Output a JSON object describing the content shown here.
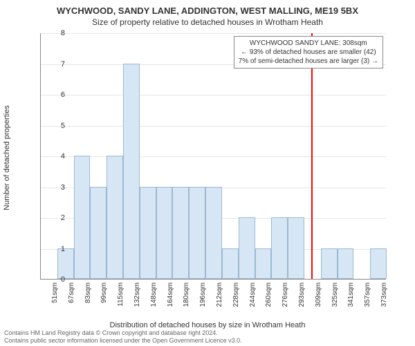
{
  "title_main": "WYCHWOOD, SANDY LANE, ADDINGTON, WEST MALLING, ME19 5BX",
  "title_sub": "Size of property relative to detached houses in Wrotham Heath",
  "y_axis_label": "Number of detached properties",
  "x_axis_label": "Distribution of detached houses by size in Wrotham Heath",
  "chart": {
    "type": "histogram",
    "bar_fill": "#d7e6f4",
    "bar_stroke": "#9bb8d3",
    "background_color": "#ffffff",
    "grid_color": "#e6e6e6",
    "axis_color": "#888888",
    "marker_color": "#ff0000",
    "bins": [
      {
        "label": "51sqm",
        "value": 0
      },
      {
        "label": "67sqm",
        "value": 1
      },
      {
        "label": "83sqm",
        "value": 4
      },
      {
        "label": "99sqm",
        "value": 3
      },
      {
        "label": "115sqm",
        "value": 4
      },
      {
        "label": "132sqm",
        "value": 7
      },
      {
        "label": "148sqm",
        "value": 3
      },
      {
        "label": "164sqm",
        "value": 3
      },
      {
        "label": "180sqm",
        "value": 3
      },
      {
        "label": "196sqm",
        "value": 3
      },
      {
        "label": "212sqm",
        "value": 3
      },
      {
        "label": "228sqm",
        "value": 1
      },
      {
        "label": "244sqm",
        "value": 2
      },
      {
        "label": "260sqm",
        "value": 1
      },
      {
        "label": "276sqm",
        "value": 2
      },
      {
        "label": "293sqm",
        "value": 2
      },
      {
        "label": "309sqm",
        "value": 0
      },
      {
        "label": "325sqm",
        "value": 1
      },
      {
        "label": "341sqm",
        "value": 1
      },
      {
        "label": "357sqm",
        "value": 0
      },
      {
        "label": "373sqm",
        "value": 1
      }
    ],
    "ylim": [
      0,
      8
    ],
    "ytick_step": 1,
    "marker_value": 308,
    "x_domain": [
      43,
      382
    ],
    "title_fontsize": 13,
    "label_fontsize": 11,
    "tick_fontsize": 10
  },
  "legend": {
    "line1": "WYCHWOOD SANDY LANE: 308sqm",
    "line2": "← 93% of detached houses are smaller (42)",
    "line3": "7% of semi-detached houses are larger (3) →"
  },
  "footer": {
    "line1": "Contains HM Land Registry data © Crown copyright and database right 2024.",
    "line2": "Contains public sector information licensed under the Open Government Licence v3.0."
  }
}
